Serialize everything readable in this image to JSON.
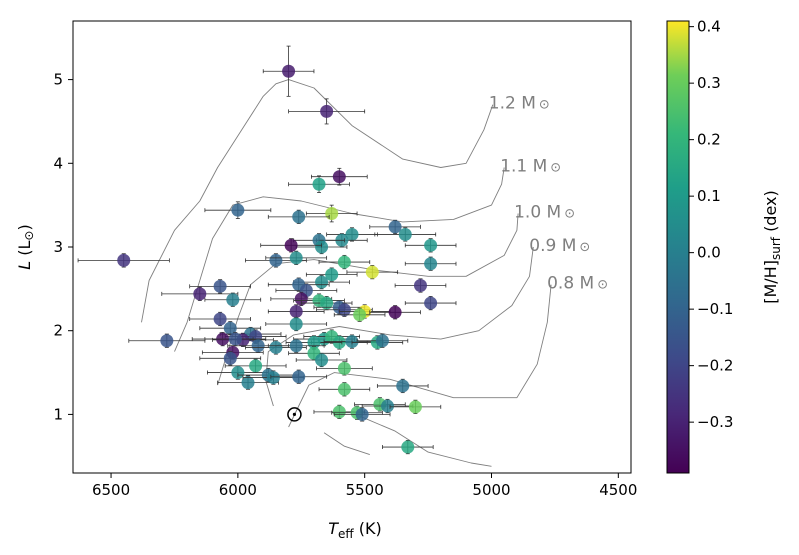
{
  "chart_data": {
    "type": "scatter",
    "xlabel": "T_eff (K)",
    "xlabel_main": "T",
    "xlabel_sub": "eff",
    "xlabel_unit": " (K)",
    "ylabel": "L (L⊙)",
    "ylabel_main": "L",
    "ylabel_unit": " (L",
    "ylabel_close": ")",
    "xlim": [
      6650,
      4450
    ],
    "ylim": [
      0.3,
      5.7
    ],
    "xticks": [
      6500,
      6000,
      5500,
      5000,
      4500
    ],
    "xtick_labels": [
      "6500",
      "6000",
      "5500",
      "5000",
      "4500"
    ],
    "yticks": [
      1,
      2,
      3,
      4,
      5
    ],
    "ytick_labels": [
      "1",
      "2",
      "3",
      "4",
      "5"
    ],
    "colorbar": {
      "label": "[M/H]_surf (dex)",
      "label_main": "[M/H]",
      "label_sub": "surf",
      "label_unit": " (dex)",
      "range": [
        -0.39,
        0.41
      ],
      "ticks": [
        -0.3,
        -0.2,
        -0.1,
        0.0,
        0.1,
        0.2,
        0.3,
        0.4
      ],
      "tick_labels": [
        "−0.3",
        "−0.2",
        "−0.1",
        "0.0",
        "0.1",
        "0.2",
        "0.3",
        "0.4"
      ],
      "colormap": "viridis"
    },
    "sun": {
      "teff": 5777,
      "lum": 1.0
    },
    "tracks": [
      {
        "label": "1.2 M",
        "points": [
          [
            6380,
            2.1
          ],
          [
            6350,
            2.6
          ],
          [
            6250,
            3.2
          ],
          [
            6150,
            3.55
          ],
          [
            6080,
            3.95
          ],
          [
            5900,
            4.8
          ],
          [
            5850,
            4.95
          ],
          [
            5800,
            5.0
          ],
          [
            5700,
            4.9
          ],
          [
            5550,
            4.45
          ],
          [
            5350,
            4.05
          ],
          [
            5200,
            3.95
          ],
          [
            5100,
            4.0
          ],
          [
            5030,
            4.4
          ],
          [
            4995,
            4.7
          ]
        ]
      },
      {
        "label": "1.1 M",
        "points": [
          [
            6250,
            1.75
          ],
          [
            6200,
            2.1
          ],
          [
            6150,
            2.6
          ],
          [
            6100,
            3.1
          ],
          [
            6020,
            3.5
          ],
          [
            5900,
            3.6
          ],
          [
            5750,
            3.55
          ],
          [
            5550,
            3.4
          ],
          [
            5350,
            3.3
          ],
          [
            5150,
            3.33
          ],
          [
            5000,
            3.5
          ],
          [
            4960,
            3.75
          ],
          [
            4950,
            3.95
          ]
        ]
      },
      {
        "label": "1.0 M",
        "points": [
          [
            6080,
            1.35
          ],
          [
            6050,
            1.65
          ],
          [
            6000,
            2.15
          ],
          [
            5950,
            2.55
          ],
          [
            5850,
            2.8
          ],
          [
            5700,
            2.85
          ],
          [
            5450,
            2.72
          ],
          [
            5250,
            2.65
          ],
          [
            5100,
            2.65
          ],
          [
            4950,
            2.9
          ],
          [
            4900,
            3.2
          ],
          [
            4895,
            3.4
          ]
        ]
      },
      {
        "label": "0.9 M",
        "points": [
          [
            5860,
            1.1
          ],
          [
            5890,
            1.4
          ],
          [
            5880,
            1.75
          ],
          [
            5780,
            1.95
          ],
          [
            5600,
            2.05
          ],
          [
            5400,
            1.95
          ],
          [
            5200,
            1.9
          ],
          [
            5050,
            2.0
          ],
          [
            4920,
            2.3
          ],
          [
            4850,
            2.65
          ],
          [
            4835,
            3.0
          ]
        ]
      },
      {
        "label": "0.8 M",
        "points": [
          [
            5800,
            0.85
          ],
          [
            5760,
            1.1
          ],
          [
            5720,
            1.35
          ],
          [
            5620,
            1.5
          ],
          [
            5400,
            1.42
          ],
          [
            5150,
            1.2
          ],
          [
            4900,
            1.2
          ],
          [
            4820,
            1.6
          ],
          [
            4780,
            2.1
          ],
          [
            4765,
            2.55
          ]
        ]
      },
      {
        "label": "",
        "points": [
          [
            5660,
            0.78
          ],
          [
            5580,
            0.62
          ],
          [
            5480,
            0.52
          ]
        ]
      },
      {
        "label": "",
        "points": [
          [
            5520,
            0.98
          ],
          [
            5380,
            0.8
          ],
          [
            5250,
            0.55
          ],
          [
            5080,
            0.42
          ],
          [
            5000,
            0.38
          ]
        ]
      }
    ],
    "points": [
      {
        "teff": 5800,
        "lum": 5.1,
        "feh": -0.32,
        "xerr": 100,
        "yerr": 0.3
      },
      {
        "teff": 5650,
        "lum": 4.62,
        "feh": -0.3,
        "xerr": 150,
        "yerr": 0.15
      },
      {
        "teff": 5600,
        "lum": 3.84,
        "feh": -0.35,
        "xerr": 110,
        "yerr": 0.1
      },
      {
        "teff": 5680,
        "lum": 3.75,
        "feh": 0.12,
        "xerr": 120,
        "yerr": 0.1
      },
      {
        "teff": 5630,
        "lum": 3.4,
        "feh": 0.35,
        "xerr": 100,
        "yerr": 0.1
      },
      {
        "teff": 6000,
        "lum": 3.44,
        "feh": -0.1,
        "xerr": 130,
        "yerr": 0.1
      },
      {
        "teff": 5760,
        "lum": 3.36,
        "feh": -0.05,
        "xerr": 120,
        "yerr": 0.08
      },
      {
        "teff": 5380,
        "lum": 3.24,
        "feh": -0.1,
        "xerr": 100,
        "yerr": 0.08
      },
      {
        "teff": 5340,
        "lum": 3.15,
        "feh": 0.05,
        "xerr": 120,
        "yerr": 0.08
      },
      {
        "teff": 5550,
        "lum": 3.15,
        "feh": 0.05,
        "xerr": 100,
        "yerr": 0.08
      },
      {
        "teff": 5240,
        "lum": 3.02,
        "feh": 0.08,
        "xerr": 100,
        "yerr": 0.08
      },
      {
        "teff": 5590,
        "lum": 3.08,
        "feh": 0.03,
        "xerr": 100,
        "yerr": 0.08
      },
      {
        "teff": 5680,
        "lum": 3.08,
        "feh": -0.05,
        "xerr": 100,
        "yerr": 0.08
      },
      {
        "teff": 5670,
        "lum": 3.0,
        "feh": 0.05,
        "xerr": 100,
        "yerr": 0.08
      },
      {
        "teff": 5790,
        "lum": 3.02,
        "feh": -0.38,
        "xerr": 120,
        "yerr": 0.08
      },
      {
        "teff": 5850,
        "lum": 2.84,
        "feh": -0.1,
        "xerr": 120,
        "yerr": 0.08
      },
      {
        "teff": 5770,
        "lum": 2.87,
        "feh": 0.05,
        "xerr": 120,
        "yerr": 0.08
      },
      {
        "teff": 5580,
        "lum": 2.82,
        "feh": 0.2,
        "xerr": 100,
        "yerr": 0.08
      },
      {
        "teff": 5240,
        "lum": 2.8,
        "feh": 0.02,
        "xerr": 100,
        "yerr": 0.08
      },
      {
        "teff": 6450,
        "lum": 2.84,
        "feh": -0.25,
        "xerr": 180,
        "yerr": 0.08
      },
      {
        "teff": 5470,
        "lum": 2.7,
        "feh": 0.38,
        "xerr": 100,
        "yerr": 0.08
      },
      {
        "teff": 5630,
        "lum": 2.67,
        "feh": 0.1,
        "xerr": 100,
        "yerr": 0.08
      },
      {
        "teff": 5670,
        "lum": 2.58,
        "feh": 0.05,
        "xerr": 110,
        "yerr": 0.08
      },
      {
        "teff": 5760,
        "lum": 2.55,
        "feh": -0.1,
        "xerr": 120,
        "yerr": 0.08
      },
      {
        "teff": 5730,
        "lum": 2.48,
        "feh": -0.15,
        "xerr": 120,
        "yerr": 0.08
      },
      {
        "teff": 5280,
        "lum": 2.54,
        "feh": -0.25,
        "xerr": 100,
        "yerr": 0.08
      },
      {
        "teff": 6070,
        "lum": 2.53,
        "feh": -0.15,
        "xerr": 120,
        "yerr": 0.08
      },
      {
        "teff": 6150,
        "lum": 2.44,
        "feh": -0.3,
        "xerr": 150,
        "yerr": 0.08
      },
      {
        "teff": 6020,
        "lum": 2.37,
        "feh": 0.0,
        "xerr": 110,
        "yerr": 0.08
      },
      {
        "teff": 5750,
        "lum": 2.38,
        "feh": -0.35,
        "xerr": 120,
        "yerr": 0.08
      },
      {
        "teff": 5680,
        "lum": 2.36,
        "feh": 0.2,
        "xerr": 100,
        "yerr": 0.08
      },
      {
        "teff": 5650,
        "lum": 2.33,
        "feh": 0.15,
        "xerr": 100,
        "yerr": 0.08
      },
      {
        "teff": 5600,
        "lum": 2.28,
        "feh": -0.12,
        "xerr": 100,
        "yerr": 0.08
      },
      {
        "teff": 5580,
        "lum": 2.25,
        "feh": -0.2,
        "xerr": 110,
        "yerr": 0.08
      },
      {
        "teff": 5500,
        "lum": 2.23,
        "feh": 0.4,
        "xerr": 100,
        "yerr": 0.08
      },
      {
        "teff": 5520,
        "lum": 2.19,
        "feh": 0.3,
        "xerr": 100,
        "yerr": 0.08
      },
      {
        "teff": 5240,
        "lum": 2.33,
        "feh": -0.2,
        "xerr": 100,
        "yerr": 0.08
      },
      {
        "teff": 5380,
        "lum": 2.22,
        "feh": -0.38,
        "xerr": 100,
        "yerr": 0.08
      },
      {
        "teff": 5770,
        "lum": 2.23,
        "feh": -0.3,
        "xerr": 110,
        "yerr": 0.08
      },
      {
        "teff": 6070,
        "lum": 2.14,
        "feh": -0.2,
        "xerr": 120,
        "yerr": 0.08
      },
      {
        "teff": 5770,
        "lum": 2.08,
        "feh": 0.05,
        "xerr": 120,
        "yerr": 0.08
      },
      {
        "teff": 6030,
        "lum": 2.03,
        "feh": -0.1,
        "xerr": 120,
        "yerr": 0.08
      },
      {
        "teff": 5950,
        "lum": 1.96,
        "feh": -0.05,
        "xerr": 120,
        "yerr": 0.08
      },
      {
        "teff": 5930,
        "lum": 1.93,
        "feh": -0.2,
        "xerr": 120,
        "yerr": 0.08
      },
      {
        "teff": 5980,
        "lum": 1.89,
        "feh": -0.3,
        "xerr": 120,
        "yerr": 0.08
      },
      {
        "teff": 6060,
        "lum": 1.9,
        "feh": -0.35,
        "xerr": 120,
        "yerr": 0.08
      },
      {
        "teff": 6010,
        "lum": 1.9,
        "feh": -0.15,
        "xerr": 120,
        "yerr": 0.08
      },
      {
        "teff": 6280,
        "lum": 1.88,
        "feh": -0.15,
        "xerr": 150,
        "yerr": 0.08
      },
      {
        "teff": 5660,
        "lum": 1.9,
        "feh": 0.1,
        "xerr": 120,
        "yerr": 0.08
      },
      {
        "teff": 5630,
        "lum": 1.93,
        "feh": 0.2,
        "xerr": 110,
        "yerr": 0.08
      },
      {
        "teff": 5600,
        "lum": 1.86,
        "feh": 0.15,
        "xerr": 110,
        "yerr": 0.08
      },
      {
        "teff": 5550,
        "lum": 1.87,
        "feh": 0.0,
        "xerr": 110,
        "yerr": 0.08
      },
      {
        "teff": 5450,
        "lum": 1.86,
        "feh": 0.15,
        "xerr": 100,
        "yerr": 0.08
      },
      {
        "teff": 5430,
        "lum": 1.88,
        "feh": -0.05,
        "xerr": 100,
        "yerr": 0.08
      },
      {
        "teff": 5700,
        "lum": 1.86,
        "feh": 0.1,
        "xerr": 110,
        "yerr": 0.08
      },
      {
        "teff": 5920,
        "lum": 1.82,
        "feh": -0.1,
        "xerr": 120,
        "yerr": 0.08
      },
      {
        "teff": 5850,
        "lum": 1.8,
        "feh": 0.0,
        "xerr": 120,
        "yerr": 0.08
      },
      {
        "teff": 5770,
        "lum": 1.82,
        "feh": -0.05,
        "xerr": 110,
        "yerr": 0.08
      },
      {
        "teff": 6020,
        "lum": 1.74,
        "feh": -0.35,
        "xerr": 120,
        "yerr": 0.08
      },
      {
        "teff": 6030,
        "lum": 1.67,
        "feh": -0.15,
        "xerr": 120,
        "yerr": 0.08
      },
      {
        "teff": 5700,
        "lum": 1.73,
        "feh": 0.2,
        "xerr": 100,
        "yerr": 0.08
      },
      {
        "teff": 5670,
        "lum": 1.65,
        "feh": 0.05,
        "xerr": 100,
        "yerr": 0.08
      },
      {
        "teff": 5930,
        "lum": 1.58,
        "feh": 0.15,
        "xerr": 120,
        "yerr": 0.08
      },
      {
        "teff": 6000,
        "lum": 1.5,
        "feh": 0.05,
        "xerr": 120,
        "yerr": 0.08
      },
      {
        "teff": 5960,
        "lum": 1.38,
        "feh": 0.0,
        "xerr": 120,
        "yerr": 0.08
      },
      {
        "teff": 5880,
        "lum": 1.47,
        "feh": -0.05,
        "xerr": 120,
        "yerr": 0.08
      },
      {
        "teff": 5860,
        "lum": 1.44,
        "feh": 0.0,
        "xerr": 120,
        "yerr": 0.08
      },
      {
        "teff": 5760,
        "lum": 1.45,
        "feh": -0.1,
        "xerr": 110,
        "yerr": 0.08
      },
      {
        "teff": 5580,
        "lum": 1.55,
        "feh": 0.25,
        "xerr": 110,
        "yerr": 0.08
      },
      {
        "teff": 5580,
        "lum": 1.3,
        "feh": 0.25,
        "xerr": 100,
        "yerr": 0.08
      },
      {
        "teff": 5350,
        "lum": 1.34,
        "feh": -0.05,
        "xerr": 100,
        "yerr": 0.08
      },
      {
        "teff": 5440,
        "lum": 1.12,
        "feh": 0.25,
        "xerr": 100,
        "yerr": 0.08
      },
      {
        "teff": 5410,
        "lum": 1.1,
        "feh": 0.0,
        "xerr": 100,
        "yerr": 0.08
      },
      {
        "teff": 5600,
        "lum": 1.03,
        "feh": 0.25,
        "xerr": 100,
        "yerr": 0.08
      },
      {
        "teff": 5530,
        "lum": 1.02,
        "feh": 0.25,
        "xerr": 100,
        "yerr": 0.08
      },
      {
        "teff": 5510,
        "lum": 1.0,
        "feh": -0.1,
        "xerr": 110,
        "yerr": 0.08
      },
      {
        "teff": 5300,
        "lum": 1.09,
        "feh": 0.3,
        "xerr": 100,
        "yerr": 0.08
      },
      {
        "teff": 5330,
        "lum": 0.61,
        "feh": 0.15,
        "xerr": 100,
        "yerr": 0.08
      }
    ]
  }
}
